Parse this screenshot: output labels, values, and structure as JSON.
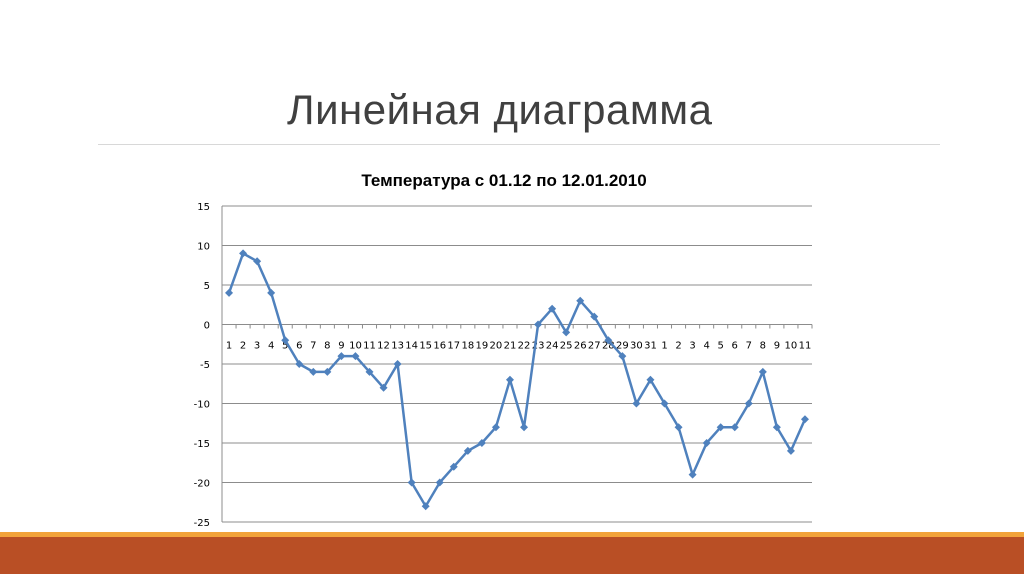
{
  "slide": {
    "title": "Линейная диаграмма"
  },
  "colors": {
    "series": "#4f81bd",
    "band": "#b94f25",
    "strip": "#f2a33a"
  },
  "chart_data": {
    "type": "line",
    "title": "Температура с 01.12 по 12.01.2010",
    "xlabel": "",
    "ylabel": "",
    "ylim": [
      -25,
      15
    ],
    "ytick_step": 5,
    "grid": "horizontal",
    "legend": "none",
    "categories": [
      "1",
      "2",
      "3",
      "4",
      "5",
      "6",
      "7",
      "8",
      "9",
      "10",
      "11",
      "12",
      "13",
      "14",
      "15",
      "16",
      "17",
      "18",
      "19",
      "20",
      "21",
      "22",
      "23",
      "24",
      "25",
      "26",
      "27",
      "28",
      "29",
      "30",
      "31",
      "1",
      "2",
      "3",
      "4",
      "5",
      "6",
      "7",
      "8",
      "9",
      "10",
      "11"
    ],
    "series": [
      {
        "values": [
          4,
          9,
          8,
          4,
          -2,
          -5,
          -6,
          -6,
          -4,
          -4,
          -6,
          -8,
          -5,
          -20,
          -23,
          -20,
          -18,
          -16,
          -15,
          -13,
          -7,
          -13,
          0,
          2,
          -1,
          3,
          1,
          -2,
          -4,
          -10,
          -7,
          -10,
          -13,
          -19,
          -15,
          -13,
          -13,
          -10,
          -6,
          -13,
          -16,
          -12
        ]
      }
    ]
  }
}
